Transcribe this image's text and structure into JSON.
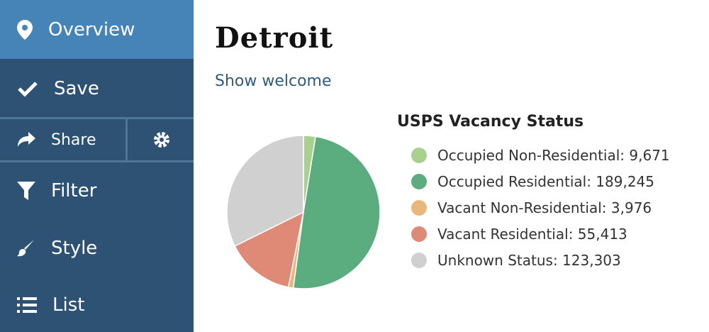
{
  "nav": {
    "items": [
      {
        "label": "Overview"
      },
      {
        "label": "Save"
      },
      {
        "label": "Share"
      },
      {
        "label": "Filter"
      },
      {
        "label": "Style"
      },
      {
        "label": "List"
      }
    ]
  },
  "header": {
    "title": "Detroit",
    "link": "Show welcome"
  },
  "chart_data": {
    "type": "pie",
    "title": "USPS Vacancy Status",
    "categories": [
      "Occupied Non-Residential",
      "Occupied Residential",
      "Vacant Non-Residential",
      "Vacant Residential",
      "Unknown Status"
    ],
    "values": [
      9671,
      189245,
      3976,
      55413,
      123303
    ],
    "value_labels": [
      "9,671",
      "189,245",
      "3,976",
      "55,413",
      "123,303"
    ],
    "colors": [
      "#a8d08f",
      "#5bad80",
      "#e9b77c",
      "#df8a76",
      "#d0d0d0"
    ]
  }
}
